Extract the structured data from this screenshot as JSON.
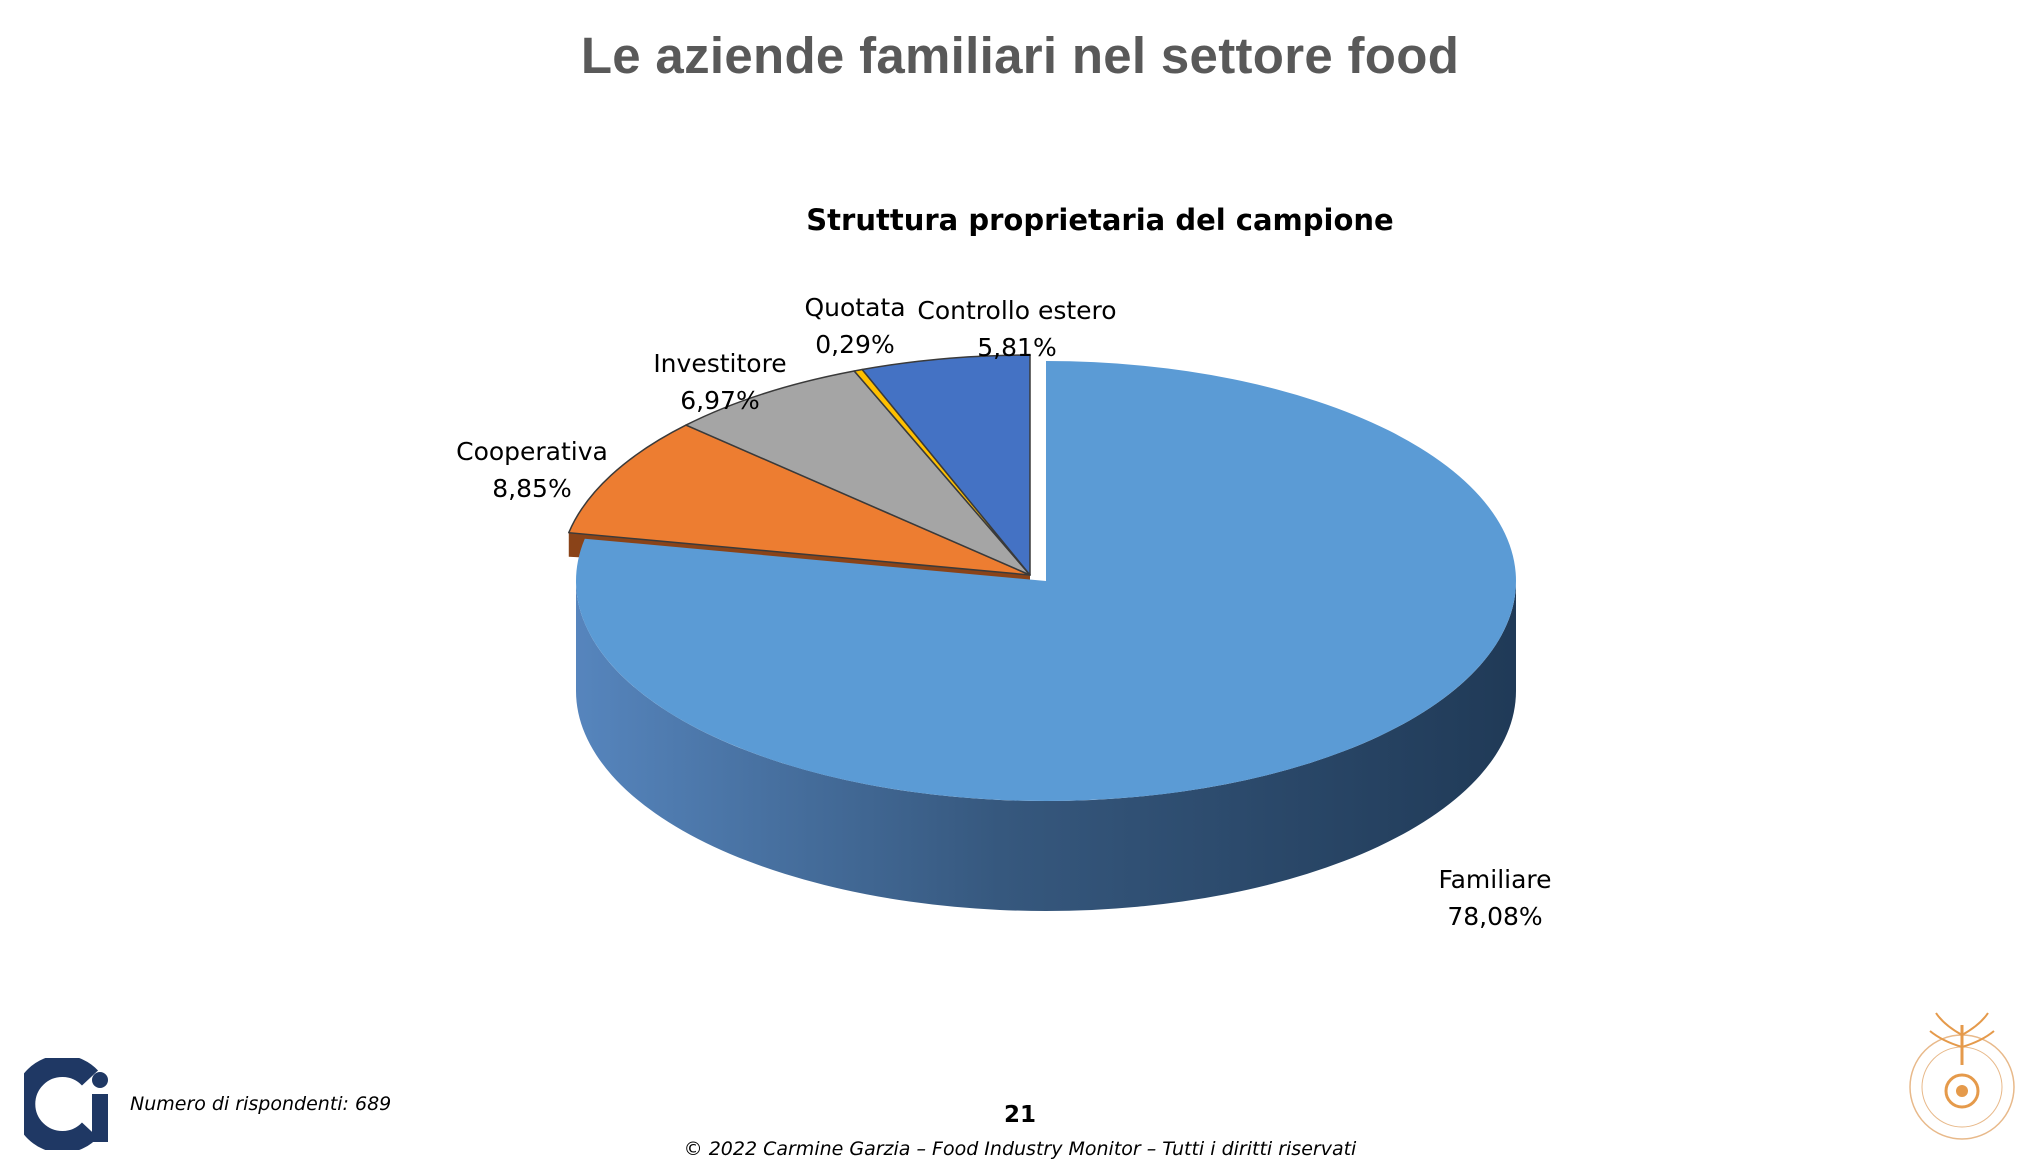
{
  "slide": {
    "title": "Le aziende familiari nel settore food",
    "page_number": "21",
    "footnote": "Numero di rispondenti: 689",
    "copyright": "© 2022 Carmine Garzia – Food Industry Monitor – Tutti i diritti riservati"
  },
  "chart_data": {
    "type": "pie",
    "title": "Struttura proprietaria del campione",
    "slices": [
      {
        "name": "Familiare",
        "value": 78.08,
        "label": "78,08%",
        "color": "#5B9BD5",
        "dark": "#2E4A6B"
      },
      {
        "name": "Cooperativa",
        "value": 8.85,
        "label": "8,85%",
        "color": "#ED7D31",
        "dark": "#8A4318"
      },
      {
        "name": "Investitore",
        "value": 6.97,
        "label": "6,97%",
        "color": "#A5A5A5",
        "dark": "#5E5E5E"
      },
      {
        "name": "Quotata",
        "value": 0.29,
        "label": "0,29%",
        "color": "#FFC000",
        "dark": "#8F6C00"
      },
      {
        "name": "Controllo estero",
        "value": 5.81,
        "label": "5,81%",
        "color": "#4472C4",
        "dark": "#263F6E"
      }
    ],
    "legend": "none",
    "three_d": true
  },
  "icons": {
    "left_logo": "ci-logo-icon",
    "right_logo": "university-seal-icon"
  }
}
